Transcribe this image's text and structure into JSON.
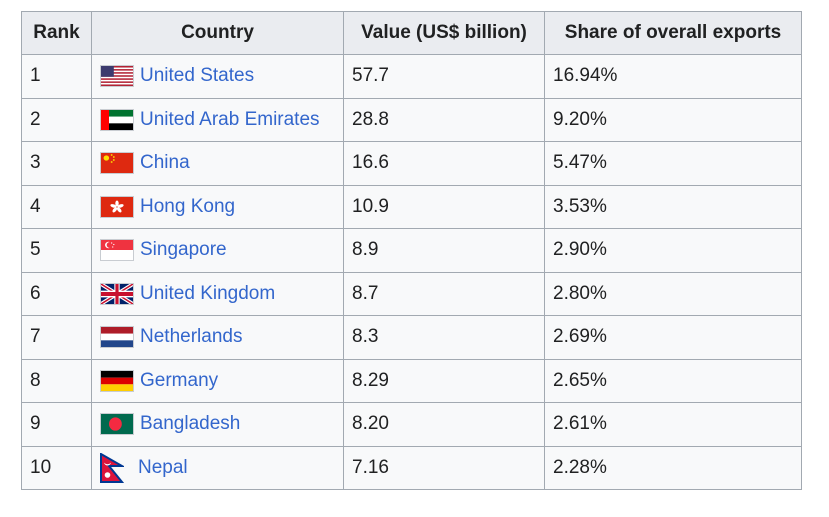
{
  "table": {
    "headers": [
      "Rank",
      "Country",
      "Value (US$ billion)",
      "Share of overall exports"
    ],
    "rows": [
      {
        "rank": "1",
        "country": "United States",
        "flag": "us-flag-icon",
        "value": "57.7",
        "share": "16.94%"
      },
      {
        "rank": "2",
        "country": "United Arab Emirates",
        "flag": "uae-flag-icon",
        "value": "28.8",
        "share": "9.20%"
      },
      {
        "rank": "3",
        "country": "China",
        "flag": "china-flag-icon",
        "value": "16.6",
        "share": "5.47%"
      },
      {
        "rank": "4",
        "country": "Hong Kong",
        "flag": "hong-kong-flag-icon",
        "value": "10.9",
        "share": "3.53%"
      },
      {
        "rank": "5",
        "country": "Singapore",
        "flag": "singapore-flag-icon",
        "value": "8.9",
        "share": "2.90%"
      },
      {
        "rank": "6",
        "country": "United Kingdom",
        "flag": "uk-flag-icon",
        "value": "8.7",
        "share": "2.80%"
      },
      {
        "rank": "7",
        "country": "Netherlands",
        "flag": "netherlands-flag-icon",
        "value": "8.3",
        "share": "2.69%"
      },
      {
        "rank": "8",
        "country": "Germany",
        "flag": "germany-flag-icon",
        "value": "8.29",
        "share": "2.65%"
      },
      {
        "rank": "9",
        "country": "Bangladesh",
        "flag": "bangladesh-flag-icon",
        "value": "8.20",
        "share": "2.61%"
      },
      {
        "rank": "10",
        "country": "Nepal",
        "flag": "nepal-flag-icon",
        "value": "7.16",
        "share": "2.28%"
      }
    ]
  },
  "colors": {
    "link": "#3366cc",
    "header_bg": "#eaecf0",
    "cell_bg": "#f8f9fa",
    "border": "#a2a9b1"
  }
}
